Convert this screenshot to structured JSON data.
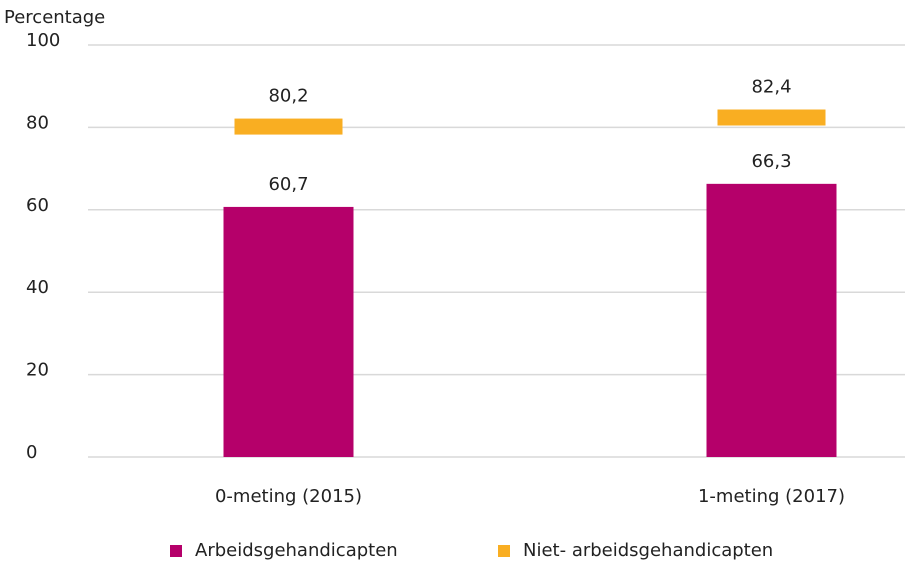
{
  "chart_data": {
    "type": "bar",
    "y_label": "Percentage",
    "categories": [
      "0-meting (2015)",
      "1-meting (2017)"
    ],
    "series": [
      {
        "name": "Arbeidsgehandicapten",
        "color": "#b5006a",
        "mark": "bar",
        "values": [
          60.7,
          66.3
        ],
        "value_labels": [
          "60,7",
          "66,3"
        ]
      },
      {
        "name": "Niet- arbeidsgehandicapten",
        "color": "#f9ae22",
        "mark": "marker",
        "values": [
          80.2,
          82.4
        ],
        "value_labels": [
          "80,2",
          "82,4"
        ]
      }
    ],
    "ylim": [
      0,
      100
    ],
    "yticks": [
      0,
      20,
      40,
      60,
      80,
      100
    ],
    "grid": true,
    "legend": "bottom"
  }
}
